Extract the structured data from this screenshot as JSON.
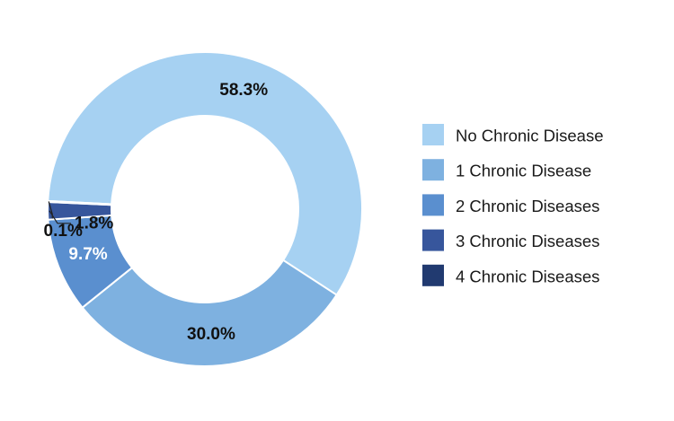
{
  "chart_data": {
    "type": "pie",
    "donut": true,
    "title": "",
    "categories": [
      "No Chronic Disease",
      "1 Chronic Disease",
      "2 Chronic Diseases",
      "3 Chronic Diseases",
      "4 Chronic Diseases"
    ],
    "values": [
      58.3,
      30.0,
      9.7,
      1.8,
      0.1
    ],
    "labels": [
      "58.3%",
      "30.0%",
      "9.7%",
      "1.8%",
      "0.1%"
    ],
    "colors": [
      "#a6d1f2",
      "#7eb1e0",
      "#5a8fcf",
      "#37569c",
      "#213a70"
    ],
    "label_colors": [
      "#111111",
      "#111111",
      "#ffffff",
      "#111111",
      "#111111"
    ],
    "legend_position": "right"
  }
}
